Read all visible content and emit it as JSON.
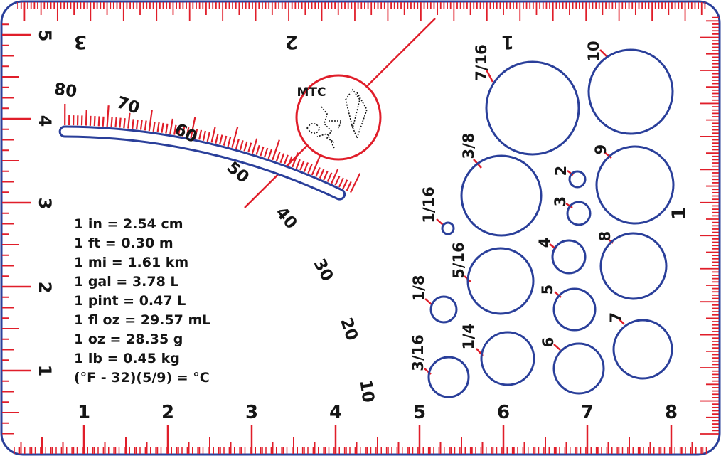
{
  "card": {
    "colors": {
      "red": "#e01e2a",
      "blue": "#2a3f9a",
      "ink": "#151515"
    }
  },
  "scales": {
    "bottom_inch": [
      "1",
      "2",
      "3",
      "4",
      "5",
      "6",
      "7",
      "8"
    ],
    "left_inch": [
      "1",
      "2",
      "3",
      "4",
      "5"
    ],
    "top_inverted": [
      "1",
      "2",
      "3"
    ],
    "right_inch": [
      "1"
    ]
  },
  "logo": {
    "label": "MTC"
  },
  "angle_gauge": {
    "labels": [
      "80",
      "70",
      "60",
      "50",
      "40",
      "30",
      "20",
      "10"
    ]
  },
  "conversions": [
    "1 in = 2.54 cm",
    "1 ft = 0.30 m",
    "1 mi = 1.61 km",
    "1 gal = 3.78 L",
    "1 pint = 0.47 L",
    "1 fl oz = 29.57 mL",
    "1 oz = 28.35 g",
    "1 lb = 0.45 kg",
    "(°F - 32)(5/9) = °C"
  ],
  "drill_holes": {
    "fractional": [
      "7/16",
      "3/8",
      "1/16",
      "5/16",
      "1/8",
      "1/4",
      "3/16"
    ],
    "numbered": [
      "10",
      "9",
      "2",
      "3",
      "4",
      "8",
      "5",
      "7",
      "6"
    ]
  }
}
